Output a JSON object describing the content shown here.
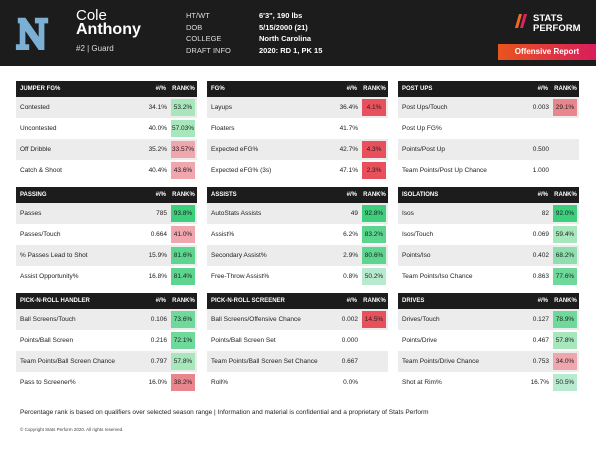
{
  "player": {
    "first_name": "Cole",
    "last_name": "Anthony",
    "number_position": "#2 | Guard",
    "team_logo_icon": "north-carolina-nc-logo",
    "bio": [
      {
        "key": "HT/WT",
        "value": "6'3\", 190 lbs"
      },
      {
        "key": "DOB",
        "value": "5/15/2000 (21)"
      },
      {
        "key": "COLLEGE",
        "value": "North Carolina"
      },
      {
        "key": "DRAFT INFO",
        "value": "2020: RD 1, PK 15"
      }
    ]
  },
  "brand": {
    "line1": "STATS",
    "line2": "PERFORM",
    "report_label": "Offensive Report",
    "icon": "stats-perform-slash-logo"
  },
  "colors": {
    "green_high": "#3ecf7c",
    "green_mid": "#a8e6bc",
    "red_low": "#e8505b",
    "red_mid": "#f0a6ad",
    "header": "#1c1c1c"
  },
  "sections": [
    {
      "title": "JUMPER FG%",
      "col1": "#/%",
      "col2": "RANK%",
      "rows": [
        {
          "label": "Contested",
          "value": "34.1%",
          "rank": "53.2%",
          "color": "#a8e6bc"
        },
        {
          "label": "Uncontested",
          "value": "40.0%",
          "rank": "57.03%",
          "color": "#a8e6bc"
        },
        {
          "label": "Off Dribble",
          "value": "35.2%",
          "rank": "33.57%",
          "color": "#f0a6ad"
        },
        {
          "label": "Catch & Shoot",
          "value": "40.4%",
          "rank": "43.6%",
          "color": "#f0a6ad"
        }
      ]
    },
    {
      "title": "FG%",
      "col1": "#/%",
      "col2": "RANK%",
      "rows": [
        {
          "label": "Layups",
          "value": "36.4%",
          "rank": "4.1%",
          "color": "#e8505b"
        },
        {
          "label": "Floaters",
          "value": "41.7%",
          "rank": "",
          "color": ""
        },
        {
          "label": "Expected eFG%",
          "value": "42.7%",
          "rank": "4.3%",
          "color": "#e8505b"
        },
        {
          "label": "Expected eFG% (3s)",
          "value": "47.1%",
          "rank": "2.3%",
          "color": "#e8505b"
        }
      ]
    },
    {
      "title": "POST UPS",
      "col1": "#/%",
      "col2": "RANK%",
      "rows": [
        {
          "label": "Post Ups/Touch",
          "value": "0.003",
          "rank": "29.1%",
          "color": "#e8858d"
        },
        {
          "label": "Post Up FG%",
          "value": "",
          "rank": "",
          "color": ""
        },
        {
          "label": "Points/Post Up",
          "value": "0.500",
          "rank": "",
          "color": ""
        },
        {
          "label": "Team Points/Post Up Chance",
          "value": "1.000",
          "rank": "",
          "color": ""
        }
      ]
    },
    {
      "title": "PASSING",
      "col1": "#/%",
      "col2": "RANK%",
      "rows": [
        {
          "label": "Passes",
          "value": "785",
          "rank": "93.8%",
          "color": "#3ecf7c"
        },
        {
          "label": "Passes/Touch",
          "value": "0.664",
          "rank": "41.0%",
          "color": "#f0a6ad"
        },
        {
          "label": "% Passes Lead to Shot",
          "value": "15.9%",
          "rank": "81.6%",
          "color": "#5cd68e"
        },
        {
          "label": "Assist Opportunity%",
          "value": "16.8%",
          "rank": "81.4%",
          "color": "#5cd68e"
        }
      ]
    },
    {
      "title": "ASSISTS",
      "col1": "#/%",
      "col2": "RANK%",
      "rows": [
        {
          "label": "AutoStats Assists",
          "value": "49",
          "rank": "92.8%",
          "color": "#3ecf7c"
        },
        {
          "label": "Assist%",
          "value": "6.2%",
          "rank": "83.2%",
          "color": "#5cd68e"
        },
        {
          "label": "Secondary Assist%",
          "value": "2.9%",
          "rank": "80.6%",
          "color": "#5cd68e"
        },
        {
          "label": "Free-Throw Assist%",
          "value": "0.8%",
          "rank": "50.2%",
          "color": "#b8ead0"
        }
      ]
    },
    {
      "title": "ISOLATIONS",
      "col1": "#/%",
      "col2": "RANK%",
      "rows": [
        {
          "label": "Isos",
          "value": "82",
          "rank": "92.0%",
          "color": "#3ecf7c"
        },
        {
          "label": "Isos/Touch",
          "value": "0.069",
          "rank": "59.4%",
          "color": "#a8e6bc"
        },
        {
          "label": "Points/Iso",
          "value": "0.402",
          "rank": "68.2%",
          "color": "#8ddfae"
        },
        {
          "label": "Team Points/Iso Chance",
          "value": "0.863",
          "rank": "77.6%",
          "color": "#6ed99a"
        }
      ]
    },
    {
      "title": "PICK-N-ROLL HANDLER",
      "col1": "#/%",
      "col2": "RANK%",
      "rows": [
        {
          "label": "Ball Screens/Touch",
          "value": "0.106",
          "rank": "73.6%",
          "color": "#6ed99a"
        },
        {
          "label": "Points/Ball Screen",
          "value": "0.216",
          "rank": "72.1%",
          "color": "#6ed99a"
        },
        {
          "label": "Team Points/Ball Screen Chance",
          "value": "0.797",
          "rank": "57.8%",
          "color": "#a8e6bc"
        },
        {
          "label": "Pass to Screener%",
          "value": "16.0%",
          "rank": "38.2%",
          "color": "#e8858d"
        }
      ]
    },
    {
      "title": "PICK-N-ROLL SCREENER",
      "col1": "#/%",
      "col2": "RANK%",
      "rows": [
        {
          "label": "Ball Screens/Offensive Chance",
          "value": "0.002",
          "rank": "14.5%",
          "color": "#e8505b"
        },
        {
          "label": "Points/Ball Screen Set",
          "value": "0.000",
          "rank": "",
          "color": ""
        },
        {
          "label": "Team Points/Ball Screen Set Chance",
          "value": "0.667",
          "rank": "",
          "color": ""
        },
        {
          "label": "Roll%",
          "value": "0.0%",
          "rank": "",
          "color": ""
        }
      ]
    },
    {
      "title": "DRIVES",
      "col1": "#/%",
      "col2": "RANK%",
      "rows": [
        {
          "label": "Drives/Touch",
          "value": "0.127",
          "rank": "78.9%",
          "color": "#6ed99a"
        },
        {
          "label": "Points/Drive",
          "value": "0.467",
          "rank": "57.8%",
          "color": "#a8e6bc"
        },
        {
          "label": "Team Points/Drive Chance",
          "value": "0.753",
          "rank": "34.0%",
          "color": "#f0a6ad"
        },
        {
          "label": "Shot at Rim%",
          "value": "16.7%",
          "rank": "50.5%",
          "color": "#b8ead0"
        }
      ]
    }
  ],
  "footer": {
    "note": "Percentage rank is based on qualifiers over selected season range | Information and material is confidential and a proprietary of Stats Perform",
    "copyright": "© Copyright Stats Perform 2020. All rights reserved."
  }
}
